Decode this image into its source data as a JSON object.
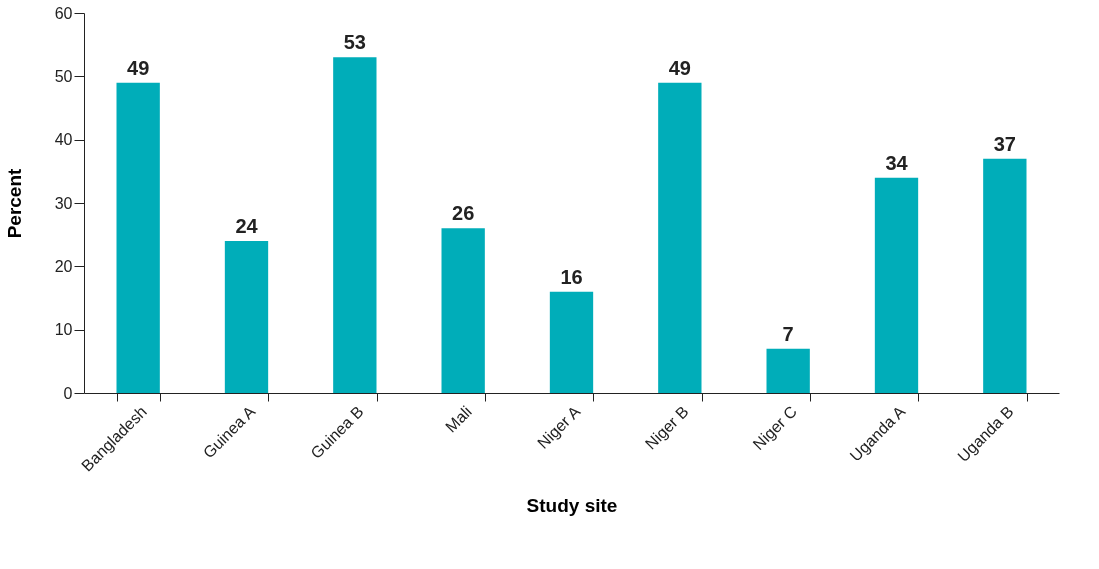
{
  "chart_data": {
    "type": "bar",
    "xlabel": "Study site",
    "ylabel": "Percent",
    "categories": [
      "Bangladesh",
      "Guinea A",
      "Guinea B",
      "Mali",
      "Niger A",
      "Niger B",
      "Niger C",
      "Uganda A",
      "Uganda B"
    ],
    "values": [
      49,
      24,
      53,
      26,
      16,
      49,
      7,
      34,
      37
    ],
    "color": "#00adb9",
    "ylim": [
      0,
      60
    ],
    "yticks": [
      0,
      10,
      20,
      30,
      40,
      50,
      60
    ],
    "grid": false,
    "data_labels": true
  }
}
